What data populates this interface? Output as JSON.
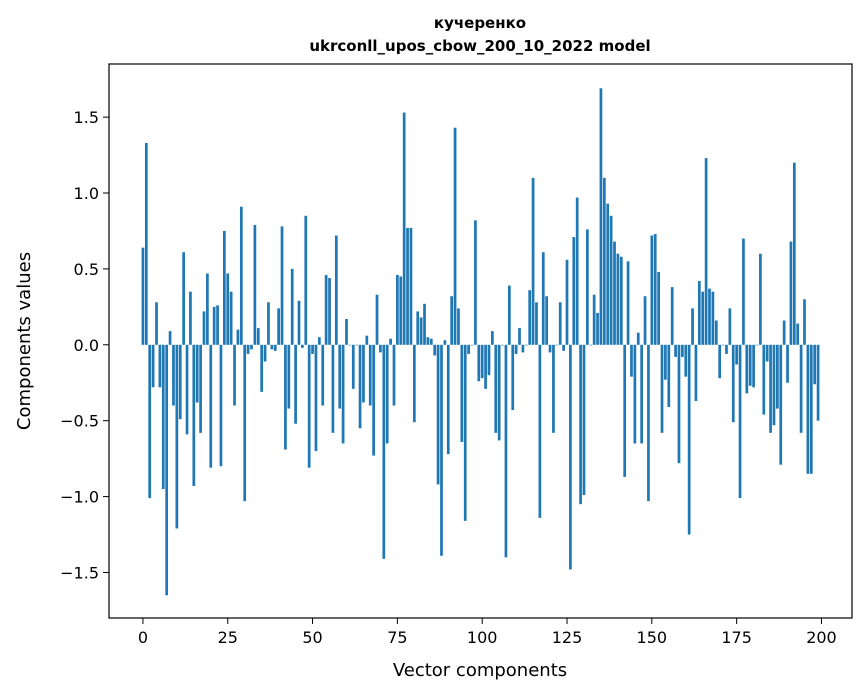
{
  "chart_data": {
    "type": "bar",
    "title_line1": "кучеренко",
    "title_line2": "ukrconll_upos_cbow_200_10_2022 model",
    "xlabel": "Vector components",
    "ylabel": "Components values",
    "xlim": [
      -10,
      209
    ],
    "ylim": [
      -1.8,
      1.85
    ],
    "xticks": [
      0,
      25,
      50,
      75,
      100,
      125,
      150,
      175,
      200
    ],
    "yticks": [
      -1.5,
      -1.0,
      -0.5,
      0.0,
      0.5,
      1.0,
      1.5
    ],
    "ytick_labels": [
      "−1.5",
      "−1.0",
      "−0.5",
      "0.0",
      "0.5",
      "1.0",
      "1.5"
    ],
    "bar_color": "#1f77b4",
    "grid": false,
    "legend": "none",
    "values": [
      0.64,
      1.33,
      -1.01,
      -0.28,
      0.28,
      -0.28,
      -0.95,
      -1.65,
      0.09,
      -0.4,
      -1.21,
      -0.49,
      0.61,
      -0.59,
      0.35,
      -0.93,
      -0.38,
      -0.58,
      0.22,
      0.47,
      -0.81,
      0.25,
      0.26,
      -0.8,
      0.75,
      0.47,
      0.35,
      -0.4,
      0.1,
      0.91,
      -1.03,
      -0.06,
      -0.03,
      0.79,
      0.11,
      -0.31,
      -0.11,
      0.28,
      -0.03,
      -0.04,
      0.24,
      0.78,
      -0.69,
      -0.42,
      0.5,
      -0.52,
      0.29,
      -0.02,
      0.85,
      -0.81,
      -0.06,
      -0.7,
      0.05,
      -0.4,
      0.46,
      0.44,
      -0.58,
      0.72,
      -0.42,
      -0.65,
      0.17,
      0.0,
      -0.29,
      0.0,
      -0.55,
      -0.38,
      0.06,
      -0.4,
      -0.73,
      0.33,
      -0.05,
      -1.41,
      -0.65,
      0.04,
      -0.4,
      0.46,
      0.45,
      1.53,
      0.77,
      0.77,
      -0.51,
      0.22,
      0.18,
      0.27,
      0.05,
      0.04,
      -0.07,
      -0.92,
      -1.39,
      0.03,
      -0.72,
      0.32,
      1.43,
      0.24,
      -0.64,
      -1.16,
      -0.06,
      0.0,
      0.82,
      -0.24,
      -0.22,
      -0.29,
      -0.2,
      0.09,
      -0.58,
      -0.63,
      0.0,
      -1.4,
      0.39,
      -0.43,
      -0.06,
      0.11,
      -0.05,
      0.0,
      0.36,
      1.1,
      0.28,
      -1.14,
      0.61,
      0.32,
      -0.05,
      -0.58,
      0.0,
      0.28,
      -0.04,
      0.56,
      -1.48,
      0.71,
      0.97,
      -1.05,
      -0.99,
      0.76,
      0.0,
      0.33,
      0.21,
      1.69,
      1.1,
      0.93,
      0.85,
      0.68,
      0.6,
      0.58,
      -0.87,
      0.55,
      -0.21,
      -0.65,
      0.08,
      -0.65,
      0.32,
      -1.03,
      0.72,
      0.73,
      0.48,
      -0.58,
      -0.23,
      -0.41,
      0.38,
      -0.08,
      -0.78,
      -0.08,
      -0.21,
      -1.25,
      0.24,
      -0.37,
      0.42,
      0.35,
      1.23,
      0.37,
      0.35,
      0.16,
      -0.22,
      0.0,
      -0.06,
      0.24,
      -0.51,
      -0.13,
      -1.01,
      0.7,
      -0.32,
      -0.27,
      -0.28,
      0.0,
      0.6,
      -0.46,
      -0.11,
      -0.58,
      -0.53,
      -0.42,
      -0.79,
      0.16,
      -0.25,
      0.68,
      1.2,
      0.14,
      -0.58,
      0.3,
      -0.85,
      -0.85,
      -0.26,
      -0.5
    ]
  }
}
